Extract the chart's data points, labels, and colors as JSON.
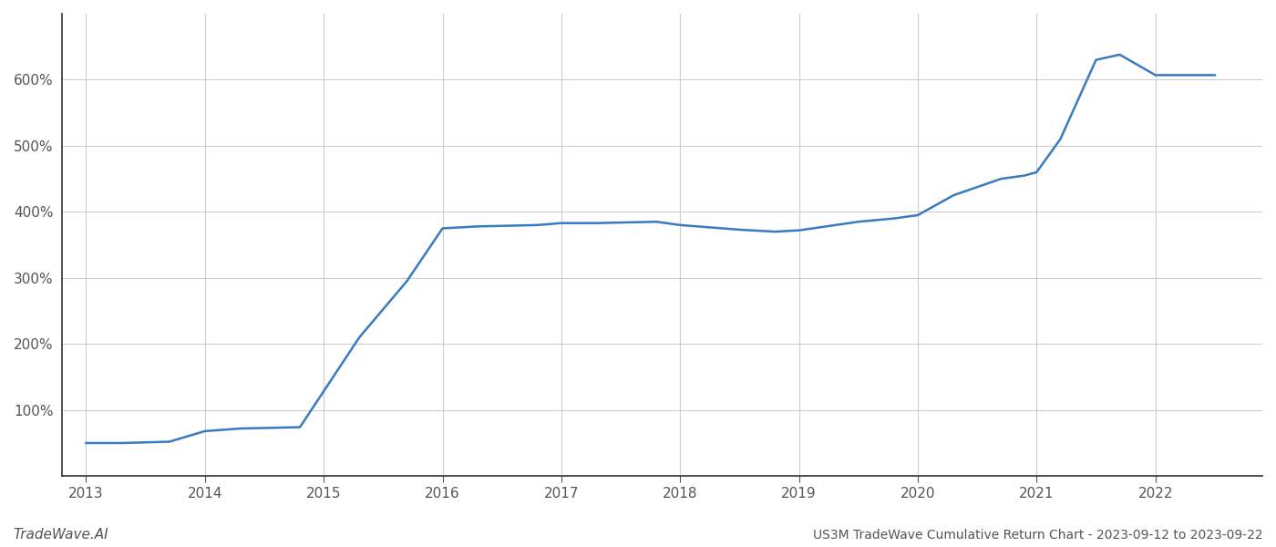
{
  "x_years": [
    2013.0,
    2013.3,
    2013.7,
    2014.0,
    2014.3,
    2014.8,
    2015.3,
    2015.7,
    2016.0,
    2016.3,
    2016.8,
    2017.0,
    2017.3,
    2017.8,
    2018.0,
    2018.5,
    2018.8,
    2019.0,
    2019.5,
    2019.8,
    2020.0,
    2020.3,
    2020.7,
    2020.9,
    2021.0,
    2021.2,
    2021.5,
    2021.7,
    2022.0,
    2022.5
  ],
  "y_values": [
    50,
    50,
    52,
    68,
    72,
    74,
    210,
    295,
    375,
    378,
    380,
    383,
    383,
    385,
    380,
    373,
    370,
    372,
    385,
    390,
    395,
    425,
    450,
    455,
    460,
    510,
    630,
    638,
    607,
    607
  ],
  "line_color": "#3a7abf",
  "line_width": 1.8,
  "background_color": "#ffffff",
  "grid_color": "#cccccc",
  "title": "US3M TradeWave Cumulative Return Chart - 2023-09-12 to 2023-09-22",
  "watermark": "TradeWave.AI",
  "x_ticks": [
    2013,
    2014,
    2015,
    2016,
    2017,
    2018,
    2019,
    2020,
    2021,
    2022
  ],
  "y_ticks": [
    100,
    200,
    300,
    400,
    500,
    600
  ],
  "ylim": [
    0,
    700
  ],
  "xlim": [
    2012.8,
    2022.9
  ]
}
